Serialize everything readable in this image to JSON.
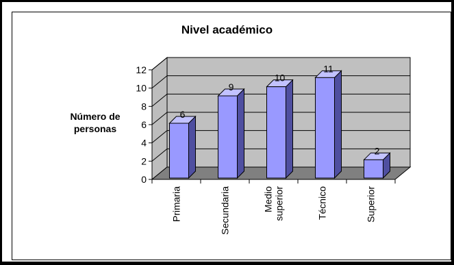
{
  "chart_data": {
    "type": "bar",
    "title": "Nivel académico",
    "ylabel": "Número de personas",
    "xlabel": "",
    "categories": [
      "Primaria",
      "Secundaria",
      "Medio superior",
      "Técnico",
      "Superior"
    ],
    "category_lines": [
      [
        "Primaria"
      ],
      [
        "Secundaria"
      ],
      [
        "Medio",
        "superior"
      ],
      [
        "Técnico"
      ],
      [
        "Superior"
      ]
    ],
    "values": [
      6,
      9,
      10,
      11,
      2
    ],
    "ylim": [
      0,
      12
    ],
    "yticks": [
      0,
      2,
      4,
      6,
      8,
      10,
      12
    ],
    "ytick_labels": [
      "0",
      "2",
      "4",
      "6",
      "8",
      "10",
      "12"
    ],
    "data_labels": [
      "6",
      "9",
      "10",
      "11",
      "2"
    ],
    "grid": true,
    "legend": "none",
    "style": "3d-column"
  },
  "colors": {
    "bar_front": "#9999ff",
    "bar_side": "#4f4fa0",
    "bar_top": "#c2c2ff",
    "back_wall": "#c0c0c0",
    "floor": "#808080",
    "side_wall": "#bdbdbd",
    "grid": "#000000",
    "frame": "#000000"
  }
}
